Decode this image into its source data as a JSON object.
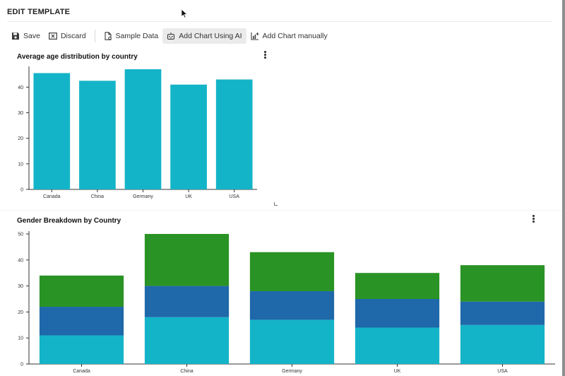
{
  "header": {
    "title": "EDIT TEMPLATE"
  },
  "toolbar": {
    "save_label": "Save",
    "discard_label": "Discard",
    "sample_data_label": "Sample Data",
    "add_chart_ai_label": "Add Chart Using AI",
    "add_chart_manual_label": "Add Chart manually"
  },
  "colors": {
    "teal": "#14b4c8",
    "blue": "#1f68aa",
    "green": "#2a9325",
    "toolbar_active_bg": "#ebebeb"
  },
  "icons": [
    "save-icon",
    "discard-icon",
    "sample-data-icon",
    "robot-icon",
    "add-chart-icon",
    "kebab-menu-icon",
    "mouse-cursor-icon"
  ],
  "charts": {
    "age": {
      "title": "Average age distribution by country",
      "chart_data": {
        "type": "bar",
        "title": "Average age distribution by country",
        "categories": [
          "Canada",
          "China",
          "Germany",
          "UK",
          "USA"
        ],
        "values": [
          45.5,
          42.5,
          47,
          41,
          43
        ],
        "ylim": [
          0,
          47
        ],
        "yticks": [
          0,
          10,
          20,
          30,
          40
        ],
        "color": "#14b4c8",
        "grid": false,
        "xlabel": "",
        "ylabel": ""
      }
    },
    "gender": {
      "title": "Gender Breakdown by Country",
      "chart_data": {
        "type": "bar",
        "stacked": true,
        "title": "Gender Breakdown by Country",
        "categories": [
          "Canada",
          "China",
          "Germany",
          "UK",
          "USA"
        ],
        "series": [
          {
            "color": "#14b4c8",
            "values": [
              11,
              18,
              17,
              14,
              15
            ]
          },
          {
            "color": "#1f68aa",
            "values": [
              11,
              12,
              11,
              11,
              9
            ]
          },
          {
            "color": "#2a9325",
            "values": [
              12,
              20,
              15,
              10,
              14
            ]
          }
        ],
        "ylim": [
          0,
          50
        ],
        "yticks": [
          0,
          10,
          20,
          30,
          40,
          50
        ],
        "grid": false,
        "legend": "none",
        "xlabel": "",
        "ylabel": ""
      }
    }
  }
}
